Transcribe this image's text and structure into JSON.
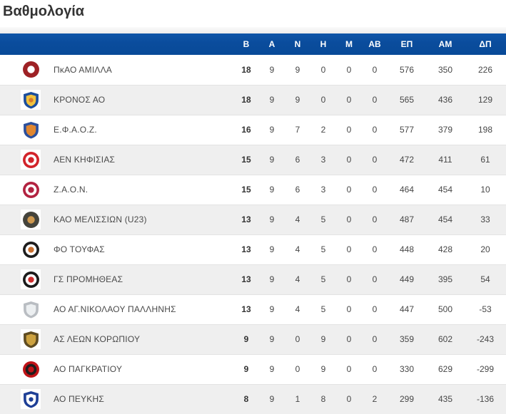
{
  "page": {
    "title": "Βαθμολογία"
  },
  "colors": {
    "header_bg": "#0a4c9c",
    "header_text": "#ffffff",
    "row_bg": "#ffffff",
    "row_alt_bg": "#efefef",
    "row_border": "#e3e3e3",
    "title_text": "#333333",
    "cell_text": "#474747"
  },
  "table": {
    "columns": [
      "Β",
      "Α",
      "Ν",
      "Η",
      "Μ",
      "ΑΒ",
      "ΕΠ",
      "ΑΜ",
      "ΔΠ"
    ],
    "rows": [
      {
        "team": "ΠκΑΟ ΑΜΙΛΛΑ",
        "values": [
          18,
          9,
          9,
          0,
          0,
          0,
          576,
          350,
          226
        ],
        "logo": {
          "shape": "disc",
          "c1": "#9e2125",
          "c2": "#ffffff"
        }
      },
      {
        "team": "ΚΡΟΝΟΣ ΑΟ",
        "values": [
          18,
          9,
          9,
          0,
          0,
          0,
          565,
          436,
          129
        ],
        "logo": {
          "shape": "shield",
          "c1": "#1c4e9d",
          "c2": "#f2c23e",
          "c3": "#d97a2b"
        }
      },
      {
        "team": "Ε.Φ.Α.Ο.Ζ.",
        "values": [
          16,
          9,
          7,
          2,
          0,
          0,
          577,
          379,
          198
        ],
        "logo": {
          "shape": "shield",
          "c1": "#2b4f9c",
          "c2": "#e0862f"
        }
      },
      {
        "team": "ΑΕΝ ΚΗΦΙΣΙΑΣ",
        "values": [
          15,
          9,
          6,
          3,
          0,
          0,
          472,
          411,
          61
        ],
        "logo": {
          "shape": "ring",
          "c1": "#d2232a",
          "c2": "#ffffff",
          "c3": "#d2232a"
        }
      },
      {
        "team": "Ζ.Α.Ο.Ν.",
        "values": [
          15,
          9,
          6,
          3,
          0,
          0,
          464,
          454,
          10
        ],
        "logo": {
          "shape": "ring",
          "c1": "#b22240",
          "c2": "#ffffff",
          "c3": "#b22240"
        }
      },
      {
        "team": "ΚΑΟ ΜΕΛΙΣΣΙΩΝ (U23)",
        "values": [
          13,
          9,
          4,
          5,
          0,
          0,
          487,
          454,
          33
        ],
        "logo": {
          "shape": "disc",
          "c1": "#45443c",
          "c2": "#cf9950"
        }
      },
      {
        "team": "ΦΟ ΤΟΥΦΑΣ",
        "values": [
          13,
          9,
          4,
          5,
          0,
          0,
          448,
          428,
          20
        ],
        "logo": {
          "shape": "ring",
          "c1": "#1c1c1c",
          "c2": "#ffffff",
          "c3": "#c96f2f"
        }
      },
      {
        "team": "ΓΣ ΠΡΟΜΗΘΕΑΣ",
        "values": [
          13,
          9,
          4,
          5,
          0,
          0,
          449,
          395,
          54
        ],
        "logo": {
          "shape": "ring",
          "c1": "#1b1b1b",
          "c2": "#ffffff",
          "c3": "#cf2e2e"
        }
      },
      {
        "team": "ΑΟ ΑΓ.ΝΙΚΟΛΑΟΥ ΠΑΛΛΗΝΗΣ",
        "values": [
          13,
          9,
          4,
          5,
          0,
          0,
          447,
          500,
          -53
        ],
        "logo": {
          "shape": "shield",
          "c1": "#b9bdc2",
          "c2": "#eceff1"
        }
      },
      {
        "team": "ΑΣ ΛΕΩΝ ΚΟΡΩΠΙΟΥ",
        "values": [
          9,
          9,
          0,
          9,
          0,
          0,
          359,
          602,
          -243
        ],
        "logo": {
          "shape": "shield",
          "c1": "#5f4c22",
          "c2": "#cda240"
        }
      },
      {
        "team": "ΑΟ ΠΑΓΚΡΑΤΙΟΥ",
        "values": [
          9,
          9,
          0,
          9,
          0,
          0,
          330,
          629,
          -299
        ],
        "logo": {
          "shape": "ring",
          "c1": "#bf1217",
          "c2": "#1f1d1d",
          "c3": "#bf1217"
        }
      },
      {
        "team": "ΑΟ ΠΕΥΚΗΣ",
        "values": [
          8,
          9,
          1,
          8,
          0,
          2,
          299,
          435,
          -136
        ],
        "logo": {
          "shape": "shield",
          "c1": "#1e3f96",
          "c2": "#ffffff",
          "c3": "#1e3f96"
        }
      }
    ]
  }
}
